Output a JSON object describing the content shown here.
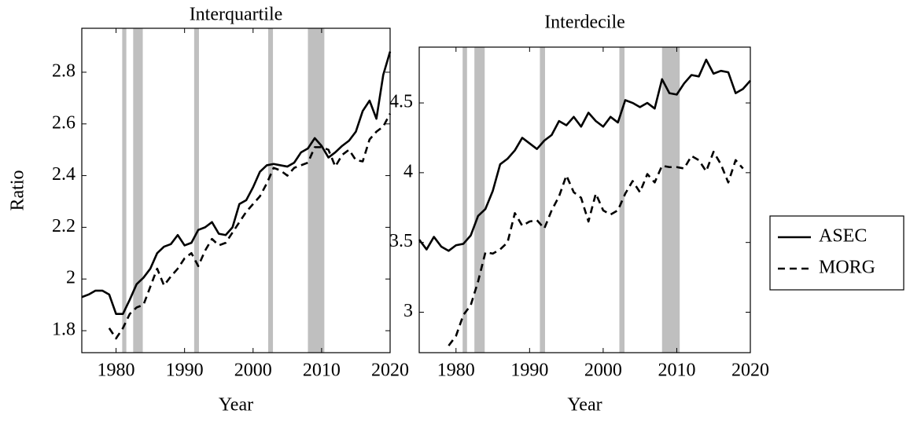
{
  "chart_data": [
    {
      "type": "line",
      "title": "Interquartile",
      "x_label": "Year",
      "y_label": "Ratio",
      "x": [
        1975,
        1976,
        1977,
        1978,
        1979,
        1980,
        1981,
        1982,
        1983,
        1984,
        1985,
        1986,
        1987,
        1988,
        1989,
        1990,
        1991,
        1992,
        1993,
        1994,
        1995,
        1996,
        1997,
        1998,
        1999,
        2000,
        2001,
        2002,
        2003,
        2004,
        2005,
        2006,
        2007,
        2008,
        2009,
        2010,
        2011,
        2012,
        2013,
        2014,
        2015,
        2016,
        2017,
        2018,
        2019,
        2020
      ],
      "series": [
        {
          "name": "ASEC",
          "color": "#000000",
          "dash": "solid",
          "values": [
            1.93,
            1.94,
            1.955,
            1.955,
            1.94,
            1.865,
            1.865,
            1.92,
            1.98,
            2.005,
            2.04,
            2.1,
            2.125,
            2.135,
            2.17,
            2.13,
            2.14,
            2.19,
            2.2,
            2.22,
            2.175,
            2.17,
            2.2,
            2.29,
            2.305,
            2.355,
            2.415,
            2.44,
            2.445,
            2.44,
            2.435,
            2.45,
            2.49,
            2.505,
            2.545,
            2.515,
            2.47,
            2.49,
            2.515,
            2.535,
            2.57,
            2.65,
            2.69,
            2.62,
            2.79,
            2.88
          ]
        },
        {
          "name": "MORG",
          "color": "#000000",
          "dash": "dashed",
          "values": [
            null,
            null,
            null,
            null,
            1.81,
            1.77,
            1.81,
            1.865,
            1.89,
            1.9,
            1.97,
            2.04,
            1.975,
            2.01,
            2.04,
            2.08,
            2.1,
            2.05,
            2.11,
            2.155,
            2.13,
            2.14,
            2.18,
            2.22,
            2.26,
            2.29,
            2.32,
            2.37,
            2.43,
            2.42,
            2.4,
            2.43,
            2.44,
            2.45,
            2.51,
            2.51,
            2.5,
            2.435,
            2.48,
            2.5,
            2.46,
            2.455,
            2.54,
            2.57,
            2.59,
            2.64
          ]
        }
      ],
      "recessions": [
        [
          1980.9,
          1981.5
        ],
        [
          1982.5,
          1983.9
        ],
        [
          1991.4,
          1992.1
        ],
        [
          2002.2,
          2002.9
        ],
        [
          2008.0,
          2010.4
        ]
      ],
      "recession_color": "#bfbfbf",
      "xlim": [
        1975,
        2020
      ],
      "xticks": [
        1980,
        1990,
        2000,
        2010,
        2020
      ],
      "ylim": [
        1.715,
        2.97
      ],
      "yticks": [
        1.8,
        2,
        2.2,
        2.4,
        2.6,
        2.8
      ],
      "legend": "right"
    },
    {
      "type": "line",
      "title": "Interdecile",
      "x_label": "Year",
      "x": [
        1975,
        1976,
        1977,
        1978,
        1979,
        1980,
        1981,
        1982,
        1983,
        1984,
        1985,
        1986,
        1987,
        1988,
        1989,
        1990,
        1991,
        1992,
        1993,
        1994,
        1995,
        1996,
        1997,
        1998,
        1999,
        2000,
        2001,
        2002,
        2003,
        2004,
        2005,
        2006,
        2007,
        2008,
        2009,
        2010,
        2011,
        2012,
        2013,
        2014,
        2015,
        2016,
        2017,
        2018,
        2019,
        2020
      ],
      "series": [
        {
          "name": "ASEC",
          "color": "#000000",
          "dash": "solid",
          "values": [
            3.52,
            3.45,
            3.54,
            3.47,
            3.44,
            3.48,
            3.49,
            3.55,
            3.69,
            3.74,
            3.87,
            4.06,
            4.1,
            4.16,
            4.25,
            4.21,
            4.17,
            4.23,
            4.27,
            4.37,
            4.34,
            4.4,
            4.33,
            4.43,
            4.37,
            4.33,
            4.4,
            4.36,
            4.52,
            4.5,
            4.47,
            4.5,
            4.46,
            4.67,
            4.57,
            4.56,
            4.64,
            4.7,
            4.69,
            4.81,
            4.71,
            4.73,
            4.72,
            4.57,
            4.6,
            4.66
          ]
        },
        {
          "name": "MORG",
          "color": "#000000",
          "dash": "dashed",
          "values": [
            null,
            null,
            null,
            null,
            2.76,
            2.83,
            2.98,
            3.05,
            3.22,
            3.43,
            3.42,
            3.45,
            3.5,
            3.71,
            3.62,
            3.65,
            3.66,
            3.6,
            3.73,
            3.83,
            3.98,
            3.86,
            3.82,
            3.65,
            3.85,
            3.73,
            3.7,
            3.73,
            3.85,
            3.94,
            3.86,
            3.99,
            3.93,
            4.05,
            4.04,
            4.04,
            4.03,
            4.12,
            4.09,
            4.01,
            4.15,
            4.06,
            3.93,
            4.09,
            4.03,
            null
          ]
        }
      ],
      "recessions": [
        [
          1980.9,
          1981.5
        ],
        [
          1982.5,
          1983.9
        ],
        [
          1991.4,
          1992.1
        ],
        [
          2002.2,
          2002.9
        ],
        [
          2008.0,
          2010.4
        ]
      ],
      "recession_color": "#bfbfbf",
      "xlim": [
        1975,
        2020
      ],
      "xticks": [
        1980,
        1990,
        2000,
        2010,
        2020
      ],
      "ylim": [
        2.71,
        4.9
      ],
      "yticks": [
        3,
        3.5,
        4,
        4.5
      ]
    }
  ]
}
